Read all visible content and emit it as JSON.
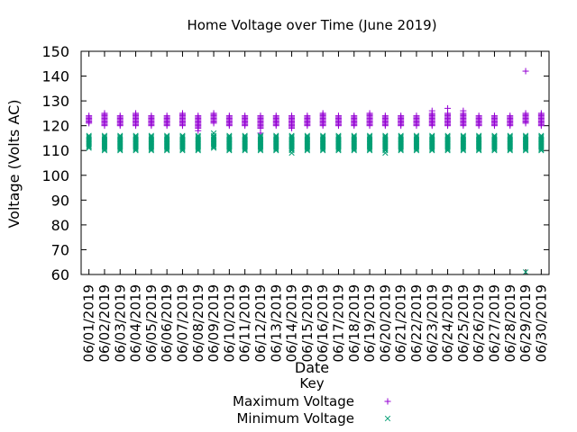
{
  "chart_data": {
    "type": "scatter",
    "title": "Home Voltage over Time (June 2019)",
    "xlabel": "Date",
    "ylabel": "Voltage (Volts AC)",
    "ylim": [
      60,
      150
    ],
    "yticks": [
      60,
      70,
      80,
      90,
      100,
      110,
      120,
      130,
      140,
      150
    ],
    "grid": false,
    "legend": {
      "title": "Key",
      "placement": "bottom-center"
    },
    "categories": [
      "06/01/2019",
      "06/02/2019",
      "06/03/2019",
      "06/04/2019",
      "06/05/2019",
      "06/06/2019",
      "06/07/2019",
      "06/08/2019",
      "06/09/2019",
      "06/10/2019",
      "06/11/2019",
      "06/12/2019",
      "06/13/2019",
      "06/14/2019",
      "06/15/2019",
      "06/16/2019",
      "06/17/2019",
      "06/18/2019",
      "06/19/2019",
      "06/20/2019",
      "06/21/2019",
      "06/22/2019",
      "06/23/2019",
      "06/24/2019",
      "06/25/2019",
      "06/26/2019",
      "06/27/2019",
      "06/28/2019",
      "06/29/2019",
      "06/30/2019"
    ],
    "series": [
      {
        "name": "Maximum Voltage",
        "marker": "plus",
        "color": "#9400d3",
        "low": [
          121,
          120,
          120,
          120,
          120,
          120,
          120,
          118,
          121,
          120,
          120,
          117,
          120,
          119,
          120,
          120,
          120,
          120,
          120,
          120,
          120,
          120,
          120,
          120,
          120,
          120,
          120,
          120,
          121,
          120
        ],
        "high": [
          124,
          125,
          124,
          125,
          124,
          124,
          125,
          124,
          125,
          124,
          124,
          124,
          124,
          124,
          124,
          125,
          124,
          124,
          125,
          124,
          124,
          124,
          126,
          127,
          126,
          124,
          124,
          124,
          142,
          125
        ]
      },
      {
        "name": "Minimum Voltage",
        "marker": "x",
        "color": "#009e73",
        "low": [
          111,
          110,
          110,
          110,
          110,
          110,
          110,
          110,
          111,
          110,
          110,
          110,
          110,
          109,
          110,
          110,
          110,
          110,
          110,
          109,
          110,
          110,
          110,
          110,
          110,
          110,
          110,
          110,
          61,
          110
        ],
        "high": [
          116,
          116,
          116,
          116,
          116,
          116,
          116,
          116,
          117,
          116,
          116,
          116,
          116,
          116,
          116,
          116,
          116,
          116,
          116,
          116,
          116,
          116,
          116,
          116,
          116,
          116,
          116,
          116,
          116,
          116
        ]
      }
    ]
  }
}
